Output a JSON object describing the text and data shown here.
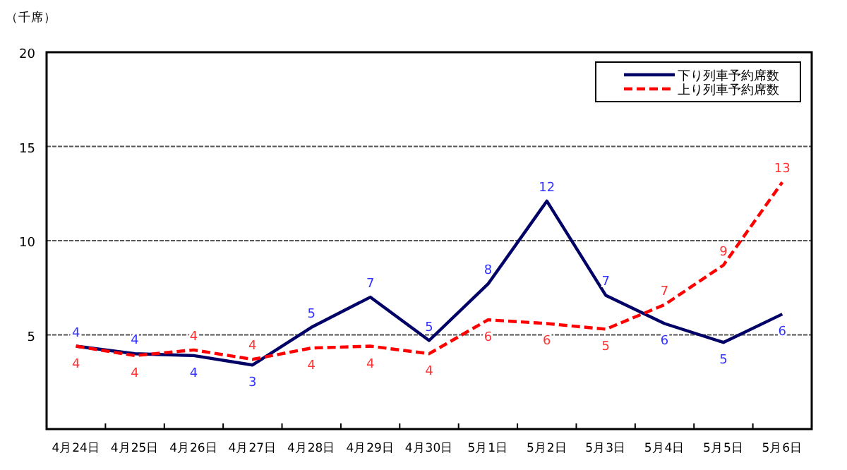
{
  "chart_data": {
    "type": "line",
    "ylabel": "（千席）",
    "categories": [
      "4月24日",
      "4月25日",
      "4月26日",
      "4月27日",
      "4月28日",
      "4月29日",
      "4月30日",
      "5月1日",
      "5月2日",
      "5月3日",
      "5月4日",
      "5月5日",
      "5月6日"
    ],
    "series": [
      {
        "name": "下り列車予約席数",
        "color": "#000066",
        "line_style": "solid",
        "values": [
          4.4,
          4.0,
          3.9,
          3.4,
          5.4,
          7.0,
          4.7,
          7.7,
          12.1,
          7.1,
          5.6,
          4.6,
          6.1
        ],
        "value_labels": [
          "4",
          "4",
          "4",
          "3",
          "5",
          "7",
          "5",
          "8",
          "12",
          "7",
          "6",
          "5",
          "6"
        ]
      },
      {
        "name": "上り列車予約席数",
        "color": "#ff0000",
        "line_style": "dashed",
        "values": [
          4.4,
          3.9,
          4.2,
          3.7,
          4.3,
          4.4,
          4.0,
          5.8,
          5.6,
          5.3,
          6.6,
          8.7,
          13.1
        ],
        "value_labels": [
          "4",
          "4",
          "4",
          "4",
          "4",
          "4",
          "4",
          "6",
          "6",
          "5",
          "7",
          "9",
          "13"
        ]
      }
    ],
    "ylim": [
      0,
      20
    ],
    "yticks": [
      5,
      10,
      15,
      20
    ],
    "grid": "y",
    "legend": "top right"
  }
}
